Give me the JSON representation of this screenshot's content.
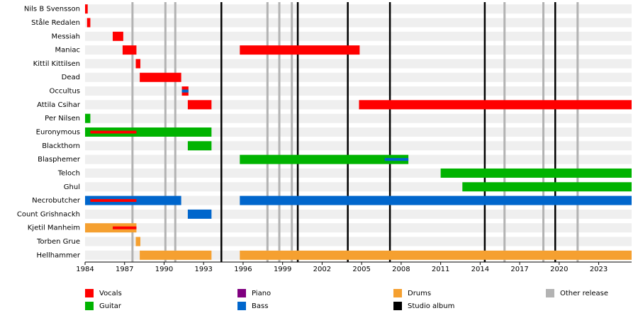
{
  "chart_data": {
    "type": "timeline",
    "xlim": [
      1984,
      2025.5
    ],
    "xticks": [
      1984,
      1987,
      1990,
      1993,
      1996,
      1999,
      2002,
      2005,
      2008,
      2011,
      2014,
      2017,
      2020,
      2023
    ],
    "roles": [
      {
        "name": "Vocals",
        "color": "#ff0000"
      },
      {
        "name": "Guitar",
        "color": "#00b300"
      },
      {
        "name": "Piano",
        "color": "#800080"
      },
      {
        "name": "Bass",
        "color": "#0066cc"
      },
      {
        "name": "Drums",
        "color": "#f5a030"
      }
    ],
    "releases": [
      {
        "name": "Studio album",
        "color": "#000000",
        "x": [
          1994.35,
          2000.15,
          2003.95,
          2007.15,
          2014.35,
          2019.7
        ]
      },
      {
        "name": "Other release",
        "color": "#b3b3b3",
        "x": [
          1987.6,
          1990.1,
          1990.85,
          1997.85,
          1998.75,
          1999.7,
          2015.85,
          2018.8,
          2021.4
        ]
      }
    ],
    "rows": [
      {
        "name": "Nils B Svensson",
        "spans": [
          {
            "role": "Vocals",
            "start": 1984.0,
            "end": 1984.2
          }
        ]
      },
      {
        "name": "Ståle Redalen",
        "spans": [
          {
            "role": "Vocals",
            "start": 1984.15,
            "end": 1984.4
          }
        ]
      },
      {
        "name": "Messiah",
        "spans": [
          {
            "role": "Vocals",
            "start": 1986.1,
            "end": 1986.9
          }
        ]
      },
      {
        "name": "Maniac",
        "spans": [
          {
            "role": "Vocals",
            "start": 1986.85,
            "end": 1987.9
          },
          {
            "role": "Vocals",
            "start": 1995.75,
            "end": 2004.85
          }
        ]
      },
      {
        "name": "Kittil Kittilsen",
        "spans": [
          {
            "role": "Vocals",
            "start": 1987.85,
            "end": 1988.2
          }
        ]
      },
      {
        "name": "Dead",
        "spans": [
          {
            "role": "Vocals",
            "start": 1988.15,
            "end": 1991.3
          }
        ]
      },
      {
        "name": "Occultus",
        "spans": [
          {
            "role": "Vocals",
            "start": 1991.35,
            "end": 1991.85
          },
          {
            "role": "Bass",
            "start": 1991.35,
            "end": 1991.85,
            "thin": true
          }
        ]
      },
      {
        "name": "Attila Csihar",
        "spans": [
          {
            "role": "Vocals",
            "start": 1991.8,
            "end": 1993.6
          },
          {
            "role": "Vocals",
            "start": 2004.8,
            "end": 2025.5
          }
        ]
      },
      {
        "name": "Per Nilsen",
        "spans": [
          {
            "role": "Guitar",
            "start": 1984.0,
            "end": 1984.4
          }
        ]
      },
      {
        "name": "Euronymous",
        "spans": [
          {
            "role": "Guitar",
            "start": 1984.0,
            "end": 1993.6
          },
          {
            "role": "Vocals",
            "start": 1984.4,
            "end": 1987.9,
            "thin": true
          }
        ]
      },
      {
        "name": "Blackthorn",
        "spans": [
          {
            "role": "Guitar",
            "start": 1991.8,
            "end": 1993.6
          }
        ]
      },
      {
        "name": "Blasphemer",
        "spans": [
          {
            "role": "Guitar",
            "start": 1995.75,
            "end": 2008.55
          },
          {
            "role": "Bass",
            "start": 2006.75,
            "end": 2008.55,
            "thin": true
          }
        ]
      },
      {
        "name": "Teloch",
        "spans": [
          {
            "role": "Guitar",
            "start": 2011.0,
            "end": 2025.5
          }
        ]
      },
      {
        "name": "Ghul",
        "spans": [
          {
            "role": "Guitar",
            "start": 2012.65,
            "end": 2025.5
          }
        ]
      },
      {
        "name": "Necrobutcher",
        "spans": [
          {
            "role": "Bass",
            "start": 1984.0,
            "end": 1991.3
          },
          {
            "role": "Bass",
            "start": 1995.75,
            "end": 2025.5
          },
          {
            "role": "Vocals",
            "start": 1984.4,
            "end": 1987.9,
            "thin": true
          }
        ]
      },
      {
        "name": "Count Grishnackh",
        "spans": [
          {
            "role": "Bass",
            "start": 1991.8,
            "end": 1993.6
          }
        ]
      },
      {
        "name": "Kjetil Manheim",
        "spans": [
          {
            "role": "Drums",
            "start": 1984.0,
            "end": 1987.9
          },
          {
            "role": "Vocals",
            "start": 1986.1,
            "end": 1987.9,
            "thin": true
          }
        ]
      },
      {
        "name": "Torben Grue",
        "spans": [
          {
            "role": "Drums",
            "start": 1987.85,
            "end": 1988.2
          }
        ]
      },
      {
        "name": "Hellhammer",
        "spans": [
          {
            "role": "Drums",
            "start": 1988.15,
            "end": 1993.6
          },
          {
            "role": "Drums",
            "start": 1995.75,
            "end": 2025.5
          }
        ]
      }
    ]
  }
}
